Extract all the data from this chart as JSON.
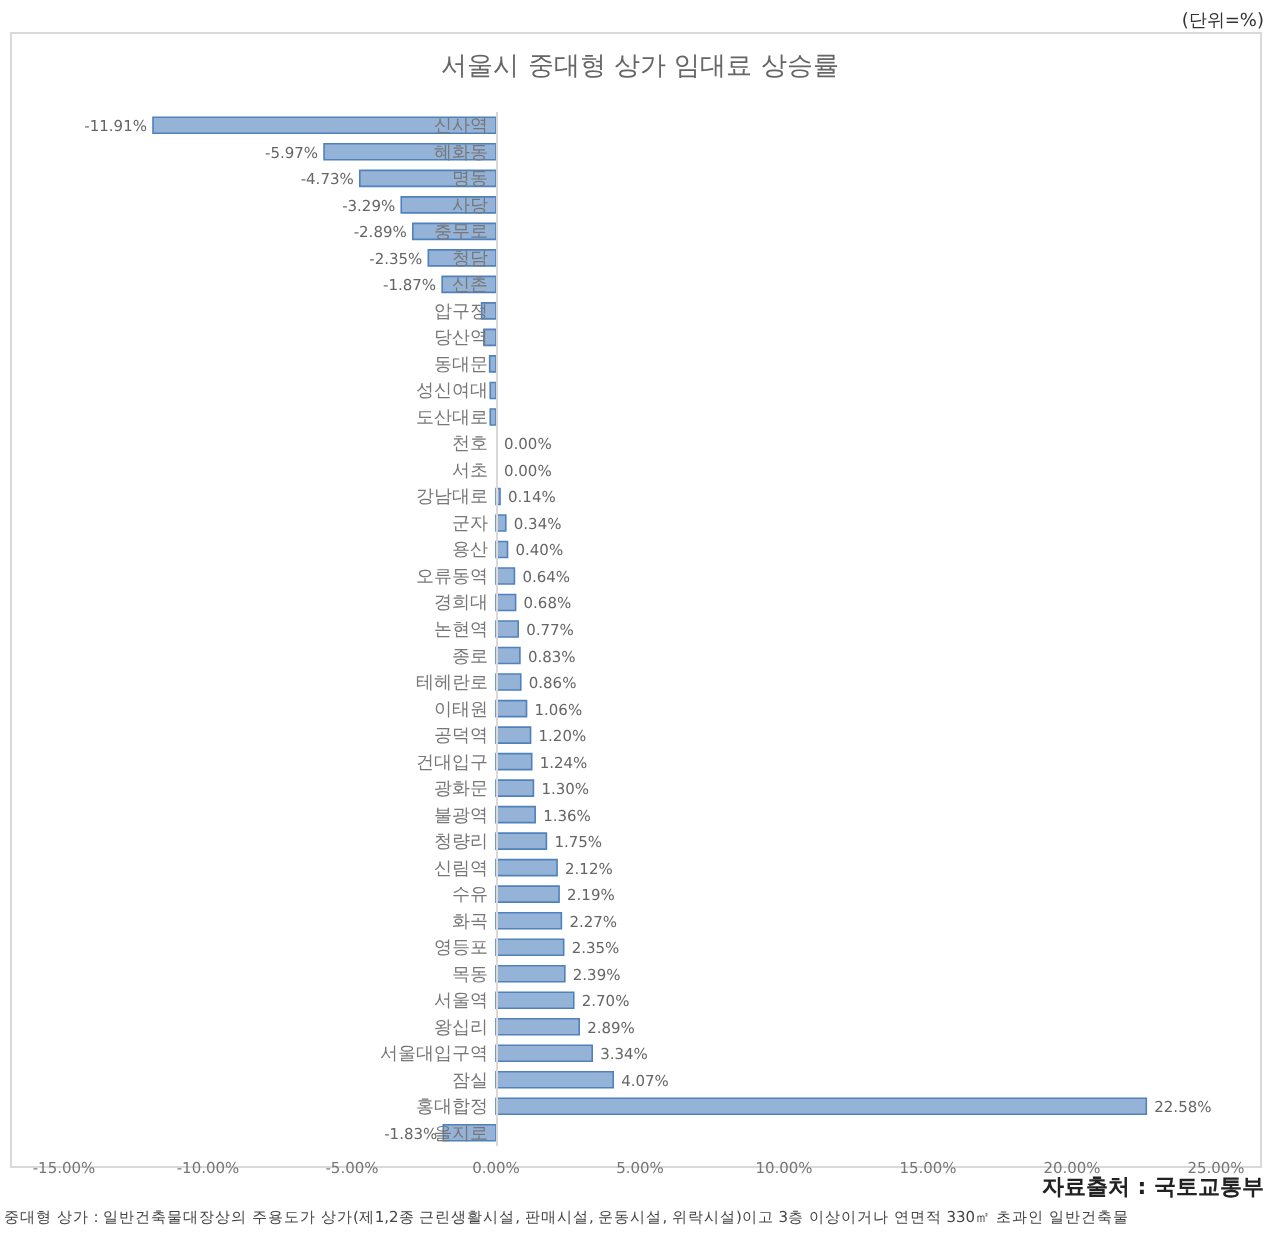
{
  "chart_data": {
    "type": "bar",
    "orientation": "horizontal",
    "title": "서울시 중대형 상가 임대료 상승률",
    "categories": [
      "신사역",
      "혜화동",
      "명동",
      "사당",
      "충무로",
      "청담",
      "신촌",
      "압구정",
      "당산역",
      "동대문",
      "성신여대",
      "도산대로",
      "천호",
      "서초",
      "강남대로",
      "군자",
      "용산",
      "오류동역",
      "경희대",
      "논현역",
      "종로",
      "테헤란로",
      "이태원",
      "공덕역",
      "건대입구",
      "광화문",
      "불광역",
      "청량리",
      "신림역",
      "수유",
      "화곡",
      "영등포",
      "목동",
      "서울역",
      "왕십리",
      "서울대입구역",
      "잠실",
      "홍대합정",
      "을지로"
    ],
    "values": [
      -11.91,
      -5.97,
      -4.73,
      -3.29,
      -2.89,
      -2.35,
      -1.87,
      -0.5,
      -0.42,
      -0.22,
      -0.2,
      -0.2,
      0,
      0,
      0.14,
      0.34,
      0.4,
      0.64,
      0.68,
      0.77,
      0.83,
      0.86,
      1.06,
      1.2,
      1.24,
      1.3,
      1.36,
      1.75,
      2.12,
      2.19,
      2.27,
      2.35,
      2.39,
      2.7,
      2.89,
      3.34,
      4.07,
      22.58,
      -1.83
    ],
    "value_labels": [
      "-11.91%",
      "-5.97%",
      "-4.73%",
      "-3.29%",
      "-2.89%",
      "-2.35%",
      "-1.87%",
      null,
      null,
      null,
      null,
      null,
      "0.00%",
      "0.00%",
      "0.14%",
      "0.34%",
      "0.40%",
      "0.64%",
      "0.68%",
      "0.77%",
      "0.83%",
      "0.86%",
      "1.06%",
      "1.20%",
      "1.24%",
      "1.30%",
      "1.36%",
      "1.75%",
      "2.12%",
      "2.19%",
      "2.27%",
      "2.35%",
      "2.39%",
      "2.70%",
      "2.89%",
      "3.34%",
      "4.07%",
      "22.58%",
      "-1.83%"
    ],
    "color": "#95b3d7",
    "xlim": [
      -15,
      25
    ],
    "xticks": [
      {
        "value": -15,
        "label": "-15.00%"
      },
      {
        "value": -10,
        "label": "-10.00%"
      },
      {
        "value": -5,
        "label": "-5.00%"
      },
      {
        "value": 0,
        "label": "0.00%"
      },
      {
        "value": 5,
        "label": "5.00%"
      },
      {
        "value": 10,
        "label": "10.00%"
      },
      {
        "value": 15,
        "label": "15.00%"
      },
      {
        "value": 20,
        "label": "20.00%"
      },
      {
        "value": 25,
        "label": "25.00%"
      }
    ],
    "grid": false,
    "legend": false,
    "annotations": [
      "(단위=%)",
      "자료출처 : 국토교통부",
      "중대형 상가 : 일반건축물대장상의 주용도가 상가(제1,2종 근린생활시설, 판매시설, 운동시설, 위락시설)이고 3층 이상이거나 연면적 330㎡ 초과인 일반건축물"
    ]
  }
}
